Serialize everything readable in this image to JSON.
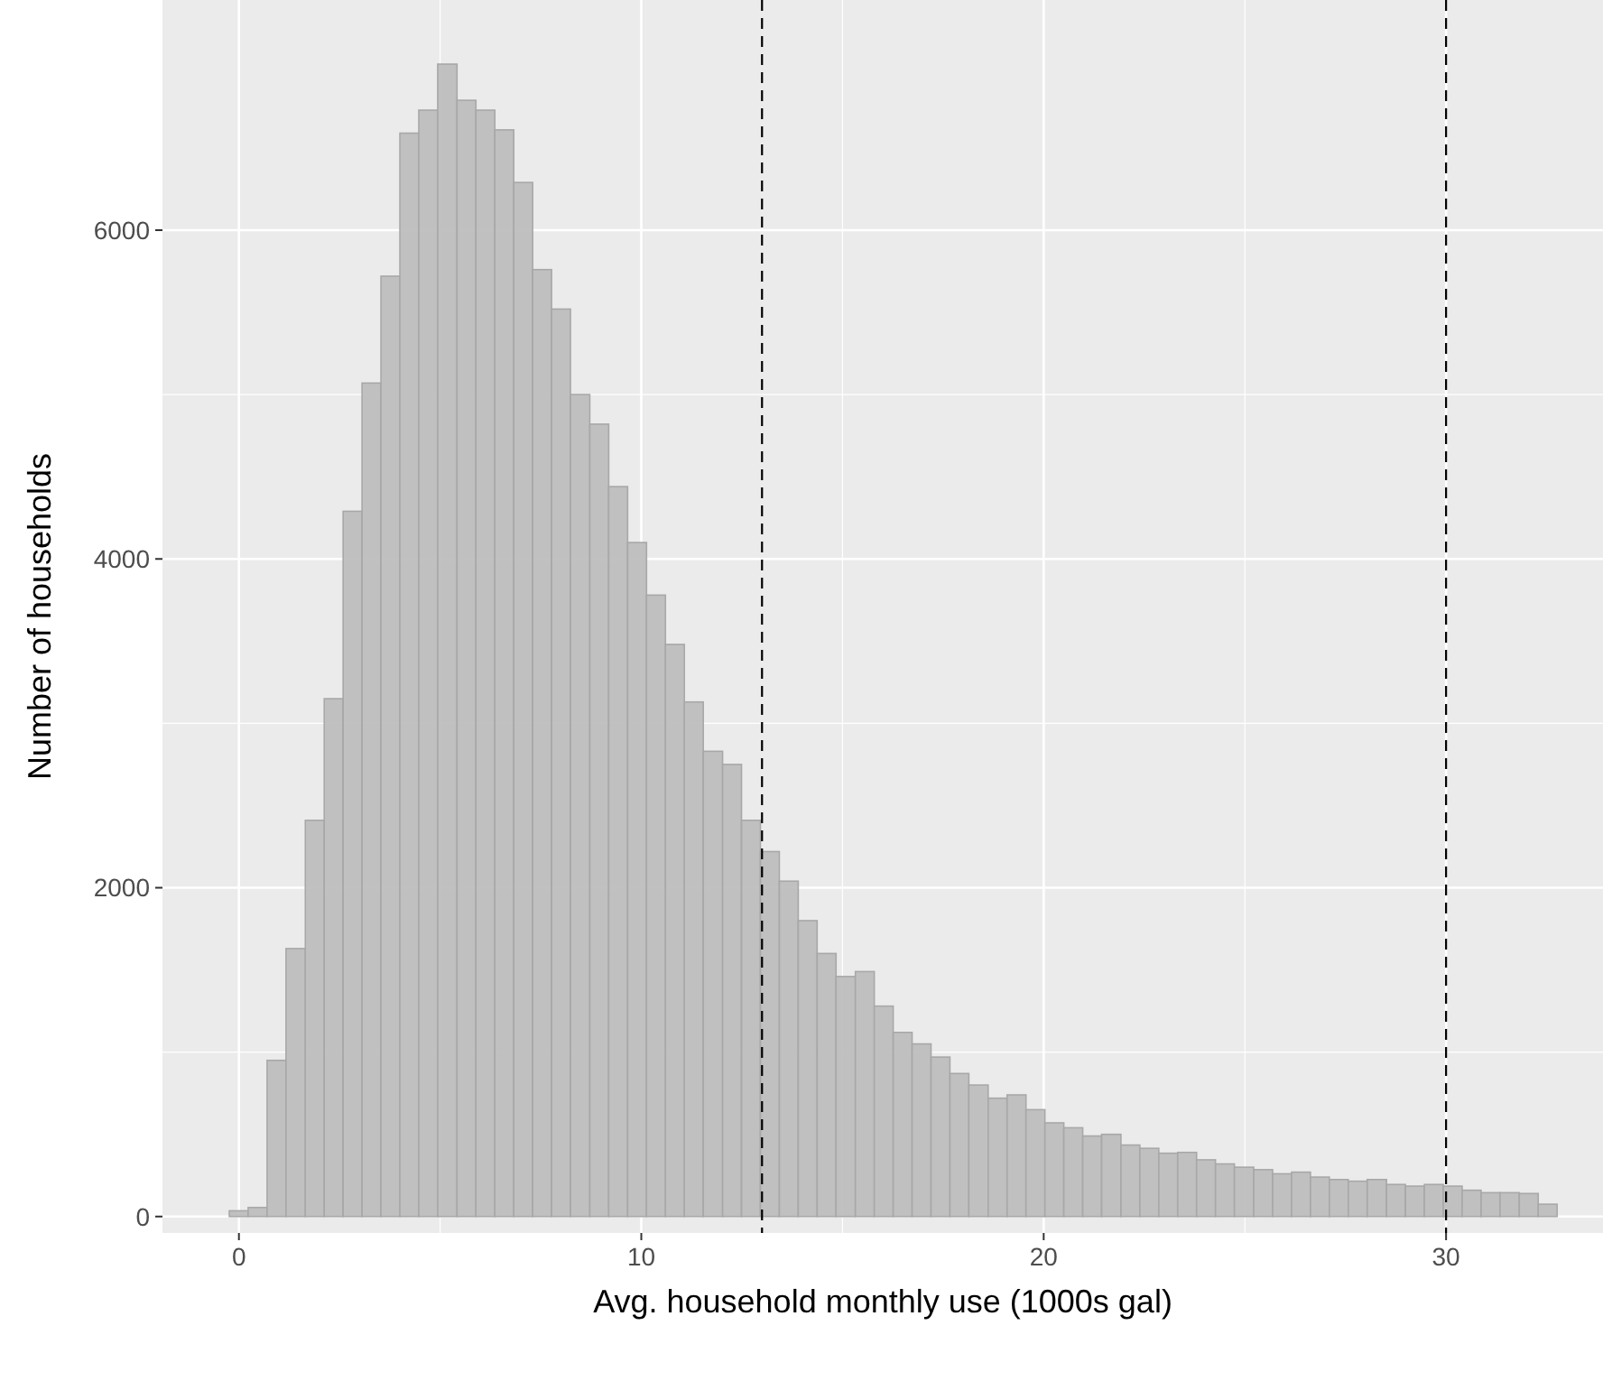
{
  "chart_data": {
    "type": "histogram",
    "xlabel": "Avg. household monthly use (1000s gal)",
    "ylabel": "Number of households",
    "bins": [
      -0.24,
      0.23,
      0.7,
      1.17,
      1.65,
      2.12,
      2.59,
      3.06,
      3.53,
      4.0,
      4.47,
      4.94,
      5.42,
      5.89,
      6.36,
      6.83,
      7.3,
      7.77,
      8.24,
      8.72,
      9.19,
      9.66,
      10.13,
      10.6,
      11.07,
      11.54,
      12.02,
      12.49,
      12.96,
      13.43,
      13.9,
      14.37,
      14.84,
      15.32,
      15.79,
      16.26,
      16.73,
      17.2,
      17.67,
      18.14,
      18.62,
      19.09,
      19.56,
      20.03,
      20.5,
      20.97,
      21.44,
      21.92,
      22.39,
      22.86,
      23.33,
      23.8,
      24.27,
      24.74,
      25.22,
      25.69,
      26.16,
      26.63,
      27.1,
      27.57,
      28.04,
      28.52,
      28.99,
      29.46,
      29.93,
      30.4,
      30.87,
      31.34,
      31.82,
      32.29,
      32.76
    ],
    "values": [
      35,
      55,
      950,
      1630,
      2410,
      3150,
      4290,
      5070,
      5720,
      6590,
      6730,
      7010,
      6790,
      6730,
      6610,
      6290,
      5760,
      5520,
      5000,
      4820,
      4440,
      4100,
      3780,
      3480,
      3130,
      2830,
      2750,
      2410,
      2220,
      2040,
      1800,
      1600,
      1460,
      1490,
      1280,
      1120,
      1050,
      970,
      870,
      800,
      720,
      740,
      650,
      570,
      540,
      490,
      500,
      435,
      415,
      385,
      390,
      345,
      320,
      300,
      285,
      260,
      270,
      240,
      225,
      215,
      225,
      195,
      185,
      195,
      185,
      160,
      145,
      145,
      140,
      75
    ],
    "color": "#bebebe",
    "xlim": [
      -1.9,
      33.9
    ],
    "xticks": [
      0,
      10,
      20,
      30
    ],
    "ylim": [
      -100,
      7400
    ],
    "yticks": [
      0,
      2000,
      4000,
      6000
    ],
    "grid": true,
    "ref_lines": [
      {
        "axis": "x",
        "value": 13,
        "color": "#000000",
        "line_style": "dashed"
      },
      {
        "axis": "x",
        "value": 30,
        "color": "#000000",
        "line_style": "dashed"
      }
    ]
  }
}
